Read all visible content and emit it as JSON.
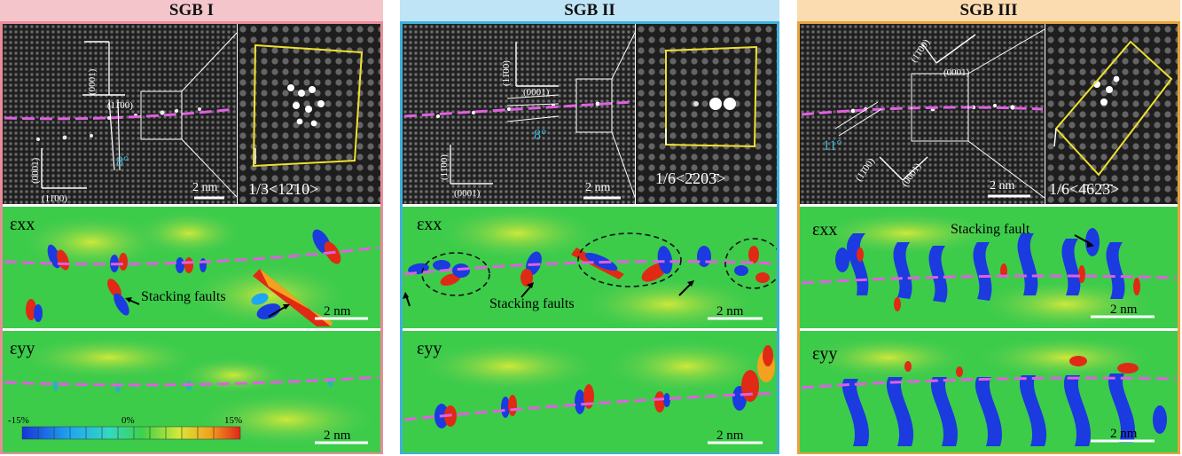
{
  "panels": [
    {
      "title": "SGB I",
      "title_bg": "#f4c6cc",
      "border": "#e88d99",
      "angle": "8°",
      "burgers": "1/3<12̄10>",
      "scale_haadf": "2 nm",
      "dir_top_a": "(0001)",
      "dir_top_b": "(11̄00)",
      "dir_bot_a": "(0001)",
      "dir_bot_b": "(11̄00)",
      "exx_label": "εxx",
      "eyy_label": "εyy",
      "annotation_exx": "Stacking faults",
      "scale_exx": "2 nm",
      "scale_eyy": "2 nm",
      "colorbar": {
        "min": "-15%",
        "mid": "0%",
        "max": "15%"
      }
    },
    {
      "title": "SGB II",
      "title_bg": "#bfe4f6",
      "border": "#3fb0dc",
      "angle": "8°",
      "burgers": "1/6<2̄203̄>",
      "scale_haadf": "2 nm",
      "dir_top_a": "(0001)",
      "dir_top_b": "(11̄00)",
      "dir_bot_a": "(0001)",
      "dir_bot_b": "(11̄00)",
      "exx_label": "εxx",
      "eyy_label": "εyy",
      "annotation_exx": "Stacking faults",
      "scale_exx": "2 nm",
      "scale_eyy": "2 nm"
    },
    {
      "title": "SGB III",
      "title_bg": "#fbdcb0",
      "border": "#e8a23c",
      "angle": "11°",
      "burgers": "1/6<4̄62̄3̄>",
      "scale_haadf": "2 nm",
      "dir_top_a": "(0001)",
      "dir_top_b": "(11̄00)",
      "dir_bot_a": "(0001)",
      "dir_bot_b": "(11̄00)",
      "exx_label": "εxx",
      "eyy_label": "εyy",
      "annotation_exx": "Stacking fault",
      "scale_exx": "2 nm",
      "scale_eyy": "2 nm"
    }
  ]
}
